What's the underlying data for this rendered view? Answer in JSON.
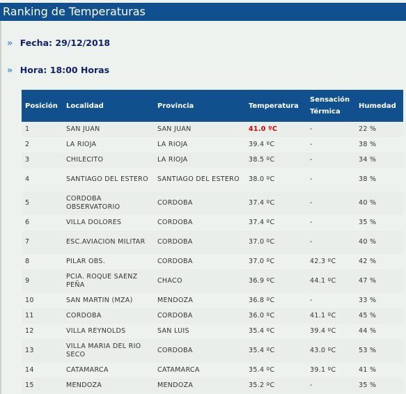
{
  "header": {
    "title": "Ranking de Temperaturas"
  },
  "info": {
    "date_label": "Fecha:",
    "date_value": "29/12/2018",
    "hour_label": "Hora:",
    "hour_value": "18:00 Horas"
  },
  "table": {
    "columns": [
      "Posición",
      "Localidad",
      "Provincia",
      "Temperatura",
      "Sensación Térmica",
      "Humedad"
    ],
    "rows": [
      {
        "pos": "1",
        "localidad": "SAN JUAN",
        "provincia": "SAN JUAN",
        "temp": "41.0 ºC",
        "sensacion": "-",
        "humedad": "22 %",
        "highlight": true
      },
      {
        "pos": "2",
        "localidad": "LA RIOJA",
        "provincia": "LA RIOJA",
        "temp": "39.4 ºC",
        "sensacion": "-",
        "humedad": "38 %"
      },
      {
        "pos": "3",
        "localidad": "CHILECITO",
        "provincia": "LA RIOJA",
        "temp": "38.5 ºC",
        "sensacion": "-",
        "humedad": "34 %"
      },
      {
        "pos": "4",
        "localidad": "SANTIAGO DEL ESTERO",
        "provincia": "SANTIAGO DEL ESTERO",
        "temp": "38.0 ºC",
        "sensacion": "-",
        "humedad": "38 %"
      },
      {
        "pos": "5",
        "localidad": "CORDOBA OBSERVATORIO",
        "provincia": "CORDOBA",
        "temp": "37.4 ºC",
        "sensacion": "-",
        "humedad": "40 %"
      },
      {
        "pos": "6",
        "localidad": "VILLA DOLORES",
        "provincia": "CORDOBA",
        "temp": "37.4 ºC",
        "sensacion": "-",
        "humedad": "35 %"
      },
      {
        "pos": "7",
        "localidad": "ESC.AVIACION MILITAR",
        "provincia": "CORDOBA",
        "temp": "37.0 ºC",
        "sensacion": "-",
        "humedad": "40 %"
      },
      {
        "pos": "8",
        "localidad": "PILAR OBS.",
        "provincia": "CORDOBA",
        "temp": "37.0 ºC",
        "sensacion": "42.3 ºC",
        "humedad": "42 %"
      },
      {
        "pos": "9",
        "localidad": "PCIA. ROQUE SAENZ PEÑA",
        "provincia": "CHACO",
        "temp": "36.9 ºC",
        "sensacion": "44.1 ºC",
        "humedad": "47 %"
      },
      {
        "pos": "10",
        "localidad": "SAN MARTIN (MZA)",
        "provincia": "MENDOZA",
        "temp": "36.8 ºC",
        "sensacion": "-",
        "humedad": "33 %"
      },
      {
        "pos": "11",
        "localidad": "CORDOBA",
        "provincia": "CORDOBA",
        "temp": "36.0 ºC",
        "sensacion": "41.1 ºC",
        "humedad": "45 %"
      },
      {
        "pos": "12",
        "localidad": "VILLA REYNOLDS",
        "provincia": "SAN LUIS",
        "temp": "35.4 ºC",
        "sensacion": "39.4 ºC",
        "humedad": "44 %"
      },
      {
        "pos": "13",
        "localidad": "VILLA MARIA DEL RIO SECO",
        "provincia": "CORDOBA",
        "temp": "35.4 ºC",
        "sensacion": "43.0 ºC",
        "humedad": "53 %"
      },
      {
        "pos": "14",
        "localidad": "CATAMARCA",
        "provincia": "CATAMARCA",
        "temp": "35.4 ºC",
        "sensacion": "39.1 ºC",
        "humedad": "41 %"
      },
      {
        "pos": "15",
        "localidad": "MENDOZA",
        "provincia": "MENDOZA",
        "temp": "35.2 ºC",
        "sensacion": "-",
        "humedad": "35 %"
      }
    ]
  },
  "colors": {
    "header_bg": "#11508e",
    "info_text": "#12236b",
    "highlight": "#cc0000",
    "bullet": "#4a8ed0"
  },
  "icons": {
    "bullet": "double-chevron-icon"
  }
}
